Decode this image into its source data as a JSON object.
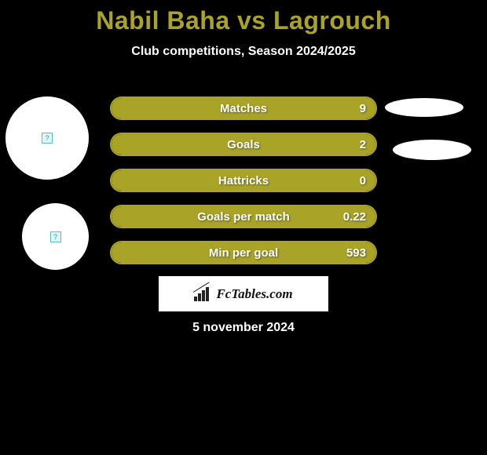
{
  "title": {
    "player1": "Nabil Baha",
    "vs": "vs",
    "player2": "Lagrouch",
    "color": "#a9a427"
  },
  "subtitle": "Club competitions, Season 2024/2025",
  "date": "5 november 2024",
  "logo_text": "FcTables.com",
  "row_style": {
    "fill_color": "#a9a427",
    "border_color": "#a9a427",
    "fill_percent": 100
  },
  "stats": [
    {
      "label": "Matches",
      "value": "9"
    },
    {
      "label": "Goals",
      "value": "2"
    },
    {
      "label": "Hattricks",
      "value": "0"
    },
    {
      "label": "Goals per match",
      "value": "0.22"
    },
    {
      "label": "Min per goal",
      "value": "593"
    }
  ]
}
